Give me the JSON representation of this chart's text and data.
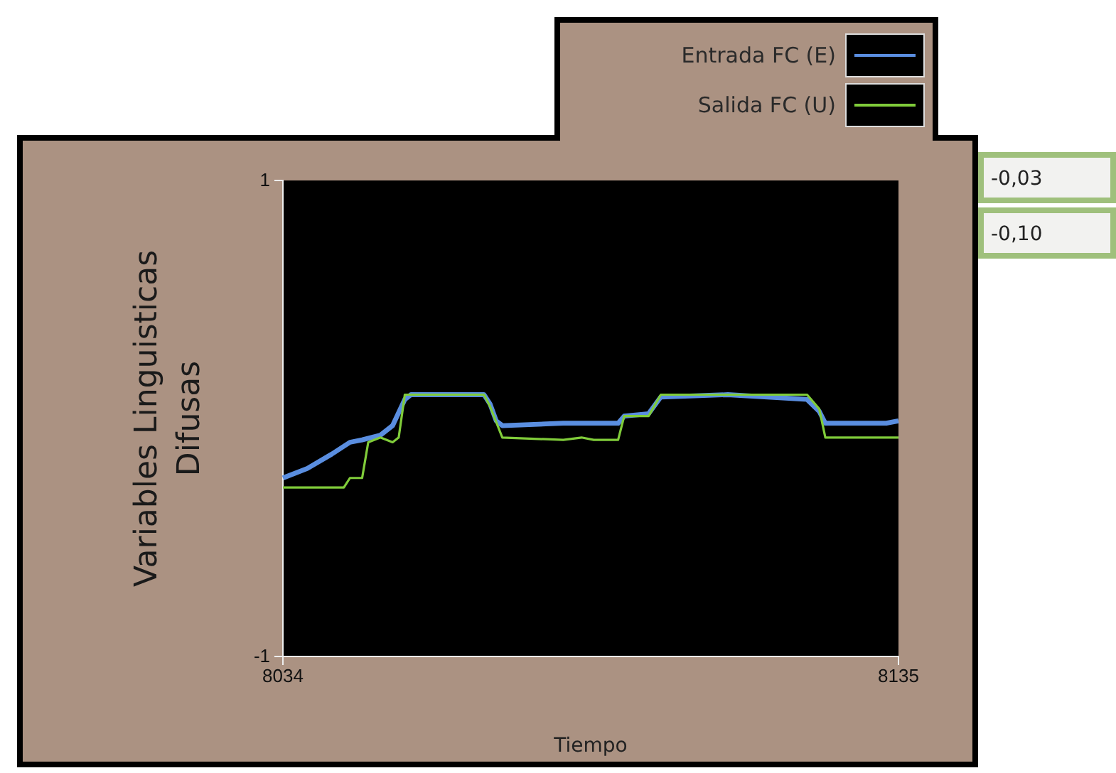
{
  "chart_data": {
    "type": "line",
    "xlabel": "Tiempo",
    "ylabel": "Variables Linguisticas Difusas",
    "xlim": [
      8034,
      8135
    ],
    "ylim": [
      -1,
      1
    ],
    "xticks": [
      8034,
      8135
    ],
    "yticks": [
      -1,
      1
    ],
    "legend": "top right",
    "annotations": [
      "-0,03",
      "-0,10"
    ],
    "series": [
      {
        "name": "Entrada FC (E)",
        "color": "#5a8ee0",
        "x": [
          8034,
          8038,
          8042,
          8045,
          8047,
          8050,
          8052,
          8054,
          8055,
          8062,
          8067,
          8068,
          8069,
          8070,
          8080,
          8089,
          8090,
          8094,
          8096,
          8107,
          8120,
          8122,
          8123,
          8133,
          8135
        ],
        "values": [
          -0.25,
          -0.21,
          -0.15,
          -0.1,
          -0.09,
          -0.07,
          -0.03,
          0.08,
          0.1,
          0.1,
          0.1,
          0.06,
          -0.01,
          -0.03,
          -0.02,
          -0.02,
          0.01,
          0.02,
          0.09,
          0.1,
          0.08,
          0.03,
          -0.02,
          -0.02,
          -0.01
        ]
      },
      {
        "name": "Salida FC (U)",
        "color": "#80cc3a",
        "x": [
          8034,
          8044,
          8045,
          8047,
          8048,
          8050,
          8052,
          8053,
          8054,
          8067,
          8068,
          8070,
          8080,
          8083,
          8085,
          8089,
          8090,
          8094,
          8096,
          8120,
          8122,
          8123,
          8135
        ],
        "values": [
          -0.29,
          -0.29,
          -0.25,
          -0.25,
          -0.1,
          -0.08,
          -0.1,
          -0.08,
          0.1,
          0.1,
          0.05,
          -0.08,
          -0.09,
          -0.08,
          -0.09,
          -0.09,
          0.01,
          0.01,
          0.1,
          0.1,
          0.04,
          -0.08,
          -0.08
        ]
      }
    ]
  }
}
